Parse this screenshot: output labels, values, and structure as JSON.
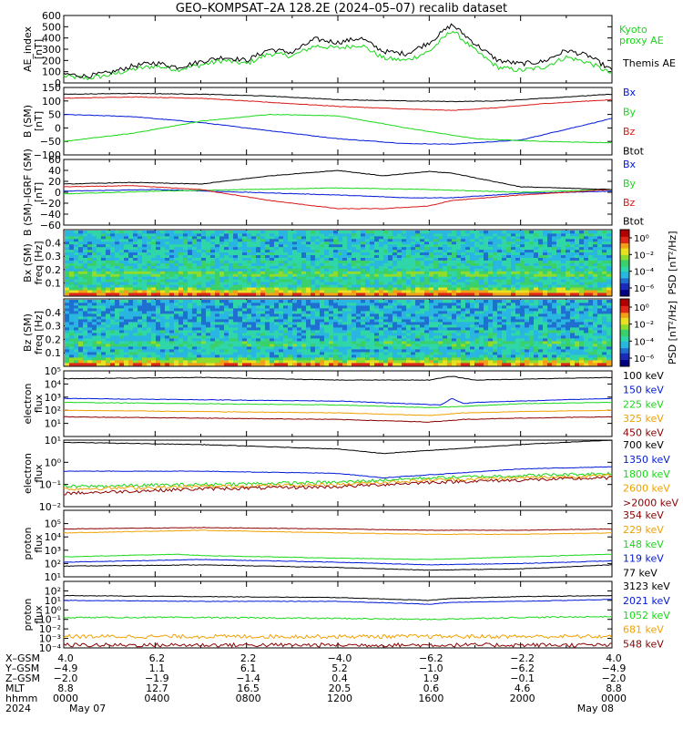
{
  "title": "GEO–KOMPSAT–2A 128.2E (2024–05–07) recalib dataset",
  "x_axis": {
    "tick_hours": [
      0,
      4,
      8,
      12,
      16,
      20,
      24
    ],
    "row_labels": [
      "X–GSM",
      "Y–GSM",
      "Z–GSM",
      "MLT",
      "hhmm",
      "2024"
    ],
    "x_gsm": [
      "4.0",
      "6.2",
      "2.2",
      "−4.0",
      "−6.2",
      "−2.2",
      "4.0"
    ],
    "y_gsm": [
      "−4.9",
      "1.1",
      "6.1",
      "5.2",
      "−1.0",
      "−6.2",
      "−4.9"
    ],
    "z_gsm": [
      "−2.0",
      "−1.9",
      "−1.4",
      "0.4",
      "1.9",
      "−0.1",
      "−2.0"
    ],
    "mlt": [
      "8.8",
      "12.7",
      "16.5",
      "20.5",
      "0.6",
      "4.6",
      "8.8"
    ],
    "hhmm": [
      "0000",
      "0400",
      "0800",
      "1200",
      "1600",
      "2000",
      "0000"
    ],
    "date_start": "May 07",
    "date_end": "May 08"
  },
  "panel_labels": {
    "ae": [
      "AE_index",
      "[nT]"
    ],
    "b": [
      "B (SM)",
      "[nT]"
    ],
    "dbb": [
      "B (SM)–IGRF (SM)",
      "[nT]"
    ],
    "bx_spec": [
      "Bx (SM)",
      "freq [Hz]"
    ],
    "bz_spec": [
      "Bz (SM)",
      "freq [Hz]"
    ],
    "e1": [
      "electron",
      "flux"
    ],
    "e2": [
      "electron",
      "flux"
    ],
    "p1": [
      "proton",
      "flux"
    ],
    "p2": [
      "proton",
      "flux"
    ]
  },
  "colorbar": {
    "label": "PSD [nT²/Hz]",
    "ticks_bx": [
      "10⁰",
      "10⁻²",
      "10⁻⁴",
      "10⁻⁶"
    ],
    "ticks_bz": [
      "10⁰",
      "10⁻²",
      "10⁻⁴",
      "10⁻⁶"
    ]
  },
  "colors": {
    "black": "#000000",
    "blue": "#0018d8",
    "green": "#18d818",
    "red": "#d81818",
    "orange": "#f0a000",
    "darkred": "#8b0000"
  },
  "chart_data": [
    {
      "id": "ae",
      "type": "line",
      "ylim": [
        0,
        600
      ],
      "yticks": [
        "0",
        "100",
        "200",
        "300",
        "400",
        "500",
        "600"
      ],
      "ytick_values": [
        0,
        100,
        200,
        300,
        400,
        500,
        600
      ],
      "series": [
        {
          "name": "Kyoto proxy AE",
          "color": "#18d818",
          "x": [
            0,
            1,
            2,
            3,
            4,
            5,
            6,
            7,
            8,
            9,
            10,
            11,
            12,
            13,
            14,
            15,
            16,
            17,
            18,
            19,
            20,
            21,
            22,
            23,
            24
          ],
          "y": [
            60,
            40,
            70,
            120,
            150,
            120,
            160,
            200,
            170,
            260,
            240,
            330,
            310,
            340,
            220,
            200,
            280,
            470,
            290,
            140,
            110,
            140,
            230,
            180,
            80
          ]
        },
        {
          "name": "Themis AE",
          "color": "#000000",
          "x": [
            0,
            1,
            2,
            3,
            4,
            5,
            6,
            7,
            8,
            9,
            10,
            11,
            12,
            13,
            14,
            15,
            16,
            17,
            18,
            19,
            20,
            21,
            22,
            23,
            24
          ],
          "y": [
            80,
            60,
            90,
            150,
            180,
            140,
            190,
            230,
            200,
            300,
            270,
            390,
            360,
            400,
            280,
            260,
            360,
            520,
            350,
            200,
            170,
            190,
            290,
            240,
            110
          ]
        }
      ],
      "legend": [
        "Kyoto",
        "proxy AE",
        "Themis AE"
      ]
    },
    {
      "id": "b",
      "type": "line",
      "ylim": [
        -100,
        150
      ],
      "yticks": [
        "−100",
        "−50",
        "0",
        "50",
        "100",
        "150"
      ],
      "ytick_values": [
        -100,
        -50,
        0,
        50,
        100,
        150
      ],
      "series": [
        {
          "name": "Bx",
          "color": "#0018d8",
          "x": [
            0,
            3,
            6,
            9,
            12,
            15,
            17,
            20,
            22,
            24
          ],
          "y": [
            50,
            42,
            20,
            -10,
            -40,
            -58,
            -60,
            -45,
            -5,
            35
          ]
        },
        {
          "name": "By",
          "color": "#18d818",
          "x": [
            0,
            3,
            6,
            9,
            12,
            15,
            18,
            21,
            24
          ],
          "y": [
            -50,
            -20,
            25,
            50,
            45,
            0,
            -40,
            -50,
            -55
          ]
        },
        {
          "name": "Bz",
          "color": "#d81818",
          "x": [
            0,
            3,
            6,
            9,
            12,
            15,
            17,
            19,
            21,
            24
          ],
          "y": [
            110,
            115,
            110,
            95,
            80,
            70,
            65,
            75,
            90,
            105
          ]
        },
        {
          "name": "Btot",
          "color": "#000000",
          "x": [
            0,
            3,
            6,
            9,
            12,
            15,
            17,
            19,
            21,
            24
          ],
          "y": [
            125,
            128,
            125,
            118,
            105,
            100,
            98,
            100,
            110,
            125
          ]
        }
      ],
      "legend": [
        "Bx",
        "By",
        "Bz",
        "Btot"
      ]
    },
    {
      "id": "dbb",
      "type": "line",
      "ylim": [
        -60,
        60
      ],
      "yticks": [
        "−60",
        "−40",
        "−20",
        "0",
        "20",
        "40",
        "60"
      ],
      "ytick_values": [
        -60,
        -40,
        -20,
        0,
        20,
        40,
        60
      ],
      "series": [
        {
          "name": "Bx",
          "color": "#0018d8",
          "x": [
            0,
            4,
            8,
            12,
            15,
            17,
            20,
            24
          ],
          "y": [
            2,
            5,
            0,
            -5,
            -10,
            -10,
            -2,
            2
          ]
        },
        {
          "name": "By",
          "color": "#18d818",
          "x": [
            0,
            4,
            8,
            12,
            16,
            20,
            24
          ],
          "y": [
            -3,
            2,
            5,
            8,
            5,
            0,
            5
          ]
        },
        {
          "name": "Bz",
          "color": "#d81818",
          "x": [
            0,
            3,
            6,
            9,
            12,
            14,
            16,
            17,
            20,
            24
          ],
          "y": [
            10,
            12,
            5,
            -15,
            -30,
            -30,
            -25,
            -15,
            -5,
            5
          ]
        },
        {
          "name": "Btot",
          "color": "#000000",
          "x": [
            0,
            3,
            6,
            9,
            12,
            14,
            16,
            17,
            20,
            24
          ],
          "y": [
            15,
            18,
            15,
            30,
            40,
            30,
            38,
            35,
            10,
            5
          ]
        }
      ],
      "legend": [
        "Bx",
        "By",
        "Bz",
        "Btot"
      ]
    },
    {
      "id": "bx_spec",
      "type": "heatmap",
      "ylim": [
        0,
        0.5
      ],
      "yticks": [
        "0.1",
        "0.2",
        "0.3",
        "0.4"
      ],
      "ytick_values": [
        0.1,
        0.2,
        0.3,
        0.4
      ]
    },
    {
      "id": "bz_spec",
      "type": "heatmap",
      "ylim": [
        0,
        0.5
      ],
      "yticks": [
        "0.1",
        "0.2",
        "0.3",
        "0.4"
      ],
      "ytick_values": [
        0.1,
        0.2,
        0.3,
        0.4
      ]
    },
    {
      "id": "e1",
      "type": "line",
      "log": true,
      "ylim": [
        1,
        100000
      ],
      "yticks": [
        "10¹",
        "10²",
        "10³",
        "10⁴",
        "10⁵"
      ],
      "ytick_values": [
        1,
        2,
        3,
        4,
        5
      ],
      "series": [
        {
          "name": "100 keV",
          "color": "#000000",
          "x": [
            0,
            6,
            12,
            16,
            17,
            17.3,
            18,
            24
          ],
          "y": [
            4.4,
            4.5,
            4.3,
            4.3,
            4.6,
            4.5,
            4.3,
            4.5
          ]
        },
        {
          "name": "150 keV",
          "color": "#0018d8",
          "x": [
            0,
            6,
            12,
            15,
            16.5,
            17,
            17.5,
            18,
            24
          ],
          "y": [
            2.9,
            2.8,
            2.7,
            2.5,
            2.4,
            2.9,
            2.5,
            2.6,
            2.9
          ]
        },
        {
          "name": "225 keV",
          "color": "#18d818",
          "x": [
            0,
            6,
            12,
            16,
            17.5,
            20,
            24
          ],
          "y": [
            2.6,
            2.5,
            2.4,
            2.2,
            2.3,
            2.5,
            2.6
          ]
        },
        {
          "name": "325 keV",
          "color": "#f0a000",
          "x": [
            0,
            6,
            12,
            16,
            17.5,
            20,
            24
          ],
          "y": [
            2.0,
            1.9,
            1.8,
            1.6,
            1.8,
            1.9,
            2.0
          ]
        },
        {
          "name": "450 keV",
          "color": "#8b0000",
          "x": [
            0,
            6,
            12,
            16,
            17.5,
            20,
            24
          ],
          "y": [
            1.5,
            1.4,
            1.3,
            1.1,
            1.3,
            1.4,
            1.5
          ]
        }
      ],
      "legend": [
        "100 keV",
        "150 keV",
        "225 keV",
        "325 keV",
        "450 keV"
      ]
    },
    {
      "id": "e2",
      "type": "line",
      "log": true,
      "ylim": [
        0.01,
        10
      ],
      "yticks": [
        "10⁻²",
        "10⁻¹",
        "10⁰",
        "10¹"
      ],
      "ytick_values": [
        -2,
        -1,
        0,
        1
      ],
      "series": [
        {
          "name": "700 keV",
          "color": "#000000",
          "x": [
            0,
            6,
            12,
            14,
            17,
            20,
            24
          ],
          "y": [
            0.9,
            0.8,
            0.6,
            0.4,
            0.6,
            0.8,
            1.0
          ]
        },
        {
          "name": "1350 keV",
          "color": "#0018d8",
          "x": [
            0,
            6,
            12,
            14,
            17,
            20,
            24
          ],
          "y": [
            -0.4,
            -0.4,
            -0.5,
            -0.7,
            -0.5,
            -0.3,
            -0.2
          ]
        },
        {
          "name": "1800 keV",
          "color": "#18d818",
          "x": [
            0,
            6,
            12,
            16,
            20,
            24
          ],
          "y": [
            -1.1,
            -1.0,
            -0.9,
            -0.7,
            -0.6,
            -0.5
          ]
        },
        {
          "name": "2600 keV",
          "color": "#f0a000",
          "x": [
            0,
            6,
            12,
            16,
            20,
            24
          ],
          "y": [
            -1.2,
            -1.1,
            -1.0,
            -0.8,
            -0.7,
            -0.6
          ]
        },
        {
          "name": ">2000 keV",
          "color": "#8b0000",
          "x": [
            0,
            6,
            12,
            16,
            20,
            24
          ],
          "y": [
            -1.4,
            -1.2,
            -1.1,
            -0.9,
            -0.8,
            -0.7
          ]
        }
      ],
      "legend": [
        "700 keV",
        "1350 keV",
        "1800 keV",
        "2600 keV",
        ">2000 keV"
      ]
    },
    {
      "id": "p1",
      "type": "line",
      "log": true,
      "ylim": [
        10,
        1000000
      ],
      "yticks": [
        "10¹",
        "10²",
        "10³",
        "10⁴",
        "10⁵"
      ],
      "ytick_values": [
        1,
        2,
        3,
        4,
        5
      ],
      "series": [
        {
          "name": "354 keV",
          "color": "#8b0000",
          "x": [
            0,
            6,
            12,
            16,
            20,
            24
          ],
          "y": [
            4.6,
            4.7,
            4.6,
            4.5,
            4.5,
            4.6
          ]
        },
        {
          "name": "229 keV",
          "color": "#f0a000",
          "x": [
            0,
            6,
            12,
            16,
            20,
            24
          ],
          "y": [
            4.3,
            4.5,
            4.3,
            4.2,
            4.2,
            4.3
          ]
        },
        {
          "name": "148 keV",
          "color": "#18d818",
          "x": [
            0,
            5,
            6,
            12,
            16,
            20,
            24
          ],
          "y": [
            2.5,
            2.7,
            2.6,
            2.4,
            2.3,
            2.5,
            2.7
          ]
        },
        {
          "name": "119 keV",
          "color": "#0018d8",
          "x": [
            0,
            6,
            12,
            16,
            20,
            24
          ],
          "y": [
            2.1,
            2.3,
            2.1,
            1.9,
            2.0,
            2.2
          ]
        },
        {
          "name": "77 keV",
          "color": "#000000",
          "x": [
            0,
            6,
            12,
            16,
            20,
            24
          ],
          "y": [
            1.8,
            1.9,
            1.7,
            1.5,
            1.6,
            1.9
          ]
        }
      ],
      "legend": [
        "354 keV",
        "229 keV",
        "148 keV",
        "119 keV",
        "77 keV"
      ]
    },
    {
      "id": "p2",
      "type": "line",
      "log": true,
      "ylim": [
        0.0001,
        1000
      ],
      "yticks": [
        "10⁻⁴",
        "10⁻³",
        "10⁻²",
        "10⁻¹",
        "10⁰",
        "10¹",
        "10²"
      ],
      "ytick_values": [
        -4,
        -3,
        -2,
        -1,
        0,
        1,
        2
      ],
      "series": [
        {
          "name": "3123 keV",
          "color": "#000000",
          "x": [
            0,
            6,
            12,
            16,
            17,
            20,
            24
          ],
          "y": [
            1.5,
            1.4,
            1.3,
            1.0,
            1.2,
            1.4,
            1.5
          ]
        },
        {
          "name": "2021 keV",
          "color": "#0018d8",
          "x": [
            0,
            6,
            12,
            16,
            17,
            20,
            24
          ],
          "y": [
            1.0,
            0.9,
            0.9,
            0.6,
            0.8,
            0.9,
            1.1
          ]
        },
        {
          "name": "1052 keV",
          "color": "#18d818",
          "x": [
            0,
            6,
            12,
            16,
            20,
            24
          ],
          "y": [
            -0.8,
            -0.8,
            -0.9,
            -1.0,
            -0.8,
            -0.7
          ]
        },
        {
          "name": "681 keV",
          "color": "#f0a000",
          "x": [
            0,
            6,
            12,
            18,
            24
          ],
          "y": [
            -2.8,
            -2.8,
            -2.8,
            -2.8,
            -2.8
          ]
        },
        {
          "name": "548 keV",
          "color": "#8b0000",
          "x": [
            0,
            6,
            12,
            18,
            24
          ],
          "y": [
            -3.7,
            -3.7,
            -3.7,
            -3.7,
            -3.7
          ]
        }
      ],
      "legend": [
        "3123 keV",
        "2021 keV",
        "1052 keV",
        "681 keV",
        "548 keV"
      ]
    }
  ]
}
